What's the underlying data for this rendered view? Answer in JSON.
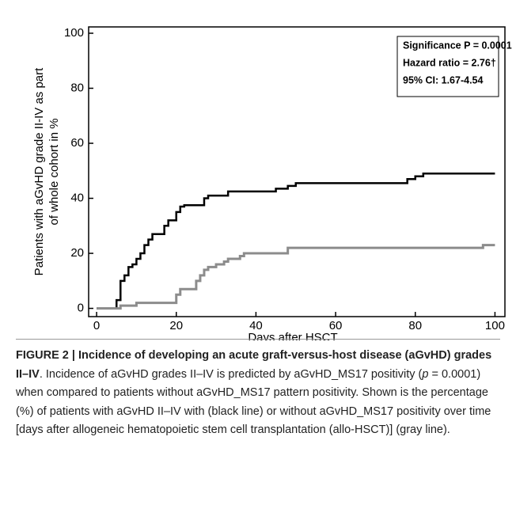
{
  "chart_data": {
    "type": "step",
    "x_label": "Days after HSCT",
    "y_label": [
      "Patients with aGvHD grade II-IV as part",
      "of whole cohort in %"
    ],
    "annotation": [
      "Significance P = 0.0001",
      "Hazard ratio = 2.76†",
      "95% CI: 1.67-4.54"
    ],
    "xlim": [
      -2,
      102.5
    ],
    "ylim": [
      -3,
      102.3
    ],
    "xticks": [
      0,
      20,
      40,
      60,
      80,
      100
    ],
    "yticks": [
      0,
      20,
      40,
      60,
      80,
      100
    ],
    "series": [
      {
        "color": "#000000",
        "x": [
          0,
          4.5,
          5,
          6,
          7,
          8,
          9,
          10,
          11,
          12,
          13,
          14,
          17,
          18,
          20,
          21,
          22,
          27,
          28,
          33,
          45,
          48,
          50,
          78,
          80,
          82,
          100
        ],
        "values": [
          0,
          0,
          3,
          10,
          12,
          15,
          16,
          18,
          20,
          23,
          25,
          27,
          30,
          32,
          35,
          37,
          37.5,
          40,
          41,
          42.5,
          43.5,
          44.5,
          45.5,
          47,
          48,
          49,
          49
        ]
      },
      {
        "color": "#8c8c8c",
        "x": [
          0,
          5,
          6,
          10,
          20,
          21,
          25,
          26,
          27,
          28,
          30,
          32,
          33,
          36,
          37,
          48,
          97,
          100
        ],
        "values": [
          0,
          0,
          1,
          2,
          5,
          7,
          10,
          12,
          14,
          15,
          16,
          17,
          18,
          19,
          20,
          22,
          23,
          23
        ]
      }
    ]
  },
  "caption": {
    "label": "FIGURE 2 |",
    "title": "Incidence of developing an acute graft-versus-host disease (aGvHD) grades II–IV",
    "text_before": ". Incidence of aGvHD grades II–IV is predicted by aGvHD_MS17 positivity (",
    "italic": "p",
    "text_after": " = 0.0001) when compared to patients without aGvHD_MS17 pattern positivity. Shown is the percentage (%) of patients with aGvHD II–IV with (black line) or without aGvHD_MS17 positivity over time [days after allogeneic hematopoietic stem cell transplantation (allo-HSCT)] (gray line)."
  }
}
